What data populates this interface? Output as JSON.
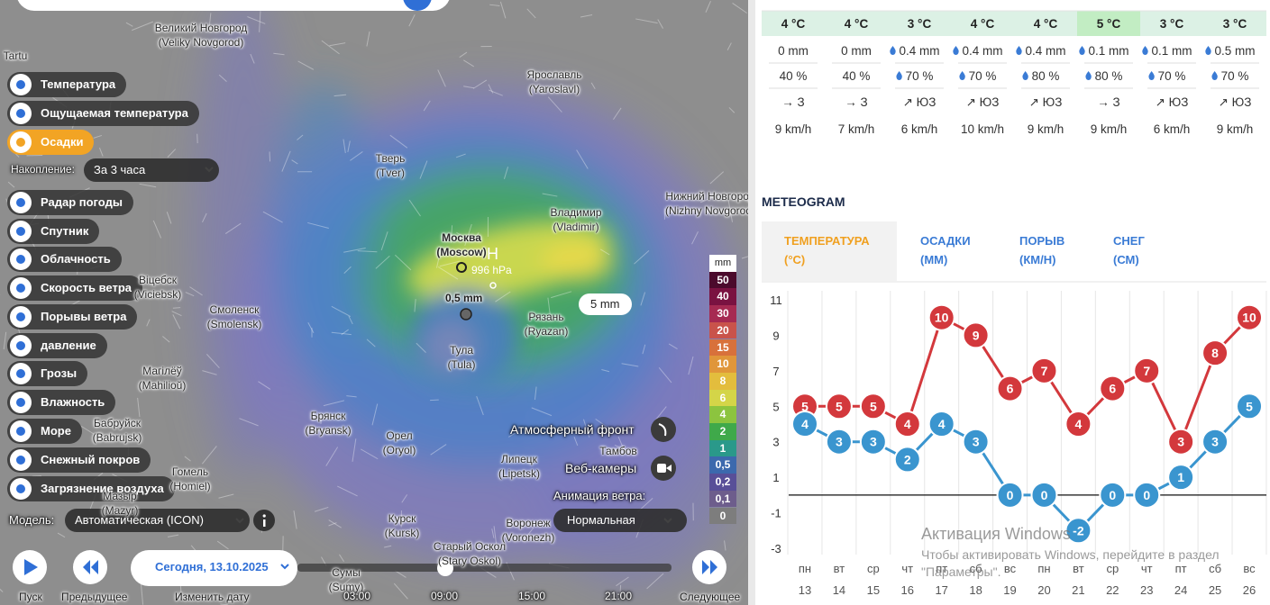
{
  "map": {
    "layers": [
      "Температура",
      "Ощущаемая температура",
      "Осадки",
      "Радар погоды",
      "Спутник",
      "Облачность",
      "Скорость ветра",
      "Порывы ветра",
      "давление",
      "Грозы",
      "Влажность",
      "Море",
      "Снежный покров",
      "Загрязнение воздуха"
    ],
    "active_layer_index": 2,
    "accumulation_label": "Накопление:",
    "accumulation_value": "За 3 часа",
    "model_label": "Модель:",
    "model_value": "Автоматическая (ICON)",
    "cities": [
      {
        "name": "Tartu"
      },
      {
        "name": "Великий Новгород",
        "alt": "(Veliky Novgorod)"
      },
      {
        "name": "Ярославль",
        "alt": "(Yaroslavl)"
      },
      {
        "name": "Тверь",
        "alt": "(Tver)"
      },
      {
        "name": "Москва",
        "alt": "(Moscow)"
      },
      {
        "name": "Владимир",
        "alt": "(Vladimir)"
      },
      {
        "name": "Нижний Новгород",
        "alt": "(Nizhny Novgorod)"
      },
      {
        "name": "Віцебск",
        "alt": "(Viciebsk)"
      },
      {
        "name": "Смоленск",
        "alt": "(Smolensk)"
      },
      {
        "name": "Рязань",
        "alt": "(Ryazan)"
      },
      {
        "name": "Тула",
        "alt": "(Tula)"
      },
      {
        "name": "Магілёў",
        "alt": "(Mahilioŭ)"
      },
      {
        "name": "Брянск",
        "alt": "(Bryansk)"
      },
      {
        "name": "Орел",
        "alt": "(Oryol)"
      },
      {
        "name": "Бабруйск",
        "alt": "(Babrujsk)"
      },
      {
        "name": "Тамбов"
      },
      {
        "name": "Липецк",
        "alt": "(Lipetsk)"
      },
      {
        "name": "Гомель",
        "alt": "(Homiel)"
      },
      {
        "name": "Мазыр",
        "alt": "(Mazyr)"
      },
      {
        "name": "Курск",
        "alt": "(Kursk)"
      },
      {
        "name": "Воронеж",
        "alt": "(Voronezh)"
      },
      {
        "name": "Старый Оскол",
        "alt": "(Stary Oskol)"
      },
      {
        "name": "Сумы",
        "alt": "(Sumy)"
      }
    ],
    "pressure_symbol": "H",
    "pressure_label": "996 hPa",
    "point_label": "0,5 mm",
    "tooltip": "5 mm",
    "legend": {
      "unit": "mm",
      "entries": [
        {
          "label": "50",
          "color": "#4b0a2c"
        },
        {
          "label": "40",
          "color": "#7a1241"
        },
        {
          "label": "30",
          "color": "#a62a52"
        },
        {
          "label": "20",
          "color": "#c9534b"
        },
        {
          "label": "15",
          "color": "#d8713b"
        },
        {
          "label": "10",
          "color": "#e0963a"
        },
        {
          "label": "8",
          "color": "#e3bd3d"
        },
        {
          "label": "6",
          "color": "#d4d548"
        },
        {
          "label": "4",
          "color": "#8cc43f"
        },
        {
          "label": "2",
          "color": "#3fa94a"
        },
        {
          "label": "1",
          "color": "#2a998a"
        },
        {
          "label": "0,5",
          "color": "#3c69ad"
        },
        {
          "label": "0,2",
          "color": "#584f98"
        },
        {
          "label": "0,1",
          "color": "#6d5d8c"
        },
        {
          "label": "0",
          "color": "#7d7d7d"
        }
      ]
    },
    "controls": {
      "front": "Атмосферный фронт",
      "webcams": "Веб-камеры",
      "wind_animation_label": "Анимация ветра:",
      "wind_animation_value": "Нормальная"
    },
    "timeline": {
      "date": "Сегодня, 13.10.2025",
      "times": [
        "03:00",
        "09:00",
        "15:00",
        "21:00"
      ]
    },
    "buttons": {
      "play": "Пуск",
      "previous": "Предыдущее",
      "change_date": "Изменить дату",
      "next": "Следующее"
    }
  },
  "forecast_table": {
    "temperature": [
      "4 °C",
      "4 °C",
      "3 °C",
      "4 °C",
      "4 °C",
      "5 °C",
      "3 °C",
      "3 °C"
    ],
    "precipitation": [
      "0 mm",
      "0 mm",
      "0.4 mm",
      "0.4 mm",
      "0.4 mm",
      "0.1 mm",
      "0.1 mm",
      "0.5 mm"
    ],
    "probability": [
      "40 %",
      "40 %",
      "70 %",
      "70 %",
      "80 %",
      "80 %",
      "70 %",
      "70 %"
    ],
    "wind_direction": [
      "→ З",
      "→ З",
      "↗ ЮЗ",
      "↗ ЮЗ",
      "↗ ЮЗ",
      "→ З",
      "↗ ЮЗ",
      "↗ ЮЗ"
    ],
    "wind_speed": [
      "9 km/h",
      "7 km/h",
      "6 km/h",
      "10 km/h",
      "9 km/h",
      "9 km/h",
      "6 km/h",
      "9 km/h"
    ]
  },
  "meteogram": {
    "heading": "METEOGRAM",
    "tabs": [
      "ТЕМПЕРАТУРА (°C)",
      "ОСАДКИ (ММ)",
      "ПОРЫВ (КМ/Н)",
      "СНЕГ (СМ)"
    ],
    "active_tab": 0
  },
  "chart_data": {
    "type": "line",
    "categories": [
      "пн",
      "вт",
      "ср",
      "чт",
      "пт",
      "сб",
      "вс",
      "пн",
      "вт",
      "ср",
      "чт",
      "пт",
      "сб",
      "вс"
    ],
    "category_dates": [
      13,
      14,
      15,
      16,
      17,
      18,
      19,
      20,
      21,
      22,
      23,
      24,
      25,
      26
    ],
    "series": [
      {
        "color": "#d3383c",
        "values": [
          5,
          5,
          5,
          4,
          10,
          9,
          6,
          7,
          4,
          6,
          7,
          3,
          8,
          10
        ]
      },
      {
        "color": "#3a95cf",
        "values": [
          4,
          3,
          3,
          2,
          4,
          3,
          0,
          0,
          -2,
          0,
          0,
          1,
          3,
          5
        ]
      }
    ],
    "ylim": [
      -3,
      11
    ],
    "yticks": [
      11,
      9,
      7,
      5,
      3,
      1,
      -1,
      -3
    ],
    "vertical_grid": true,
    "zero_line": true
  },
  "watermark": {
    "title": "Активация Windows",
    "text": [
      "Чтобы активировать Windows, перейдите в раздел",
      "\"Параметры\"."
    ]
  }
}
